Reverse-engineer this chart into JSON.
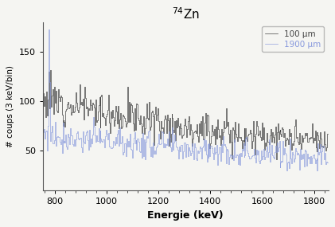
{
  "title": "$^{74}$Zn",
  "xlabel": "Energie (keV)",
  "ylabel": "# coups (3 keV/bin)",
  "xlim": [
    755,
    1855
  ],
  "ylim": [
    10,
    180
  ],
  "yticks": [
    50,
    100,
    150
  ],
  "xticks": [
    800,
    1000,
    1200,
    1400,
    1600,
    1800
  ],
  "color_black": "#444444",
  "color_blue": "#8899dd",
  "legend_labels": [
    "100 µm",
    "1900 µm"
  ],
  "seed_black": 12,
  "seed_blue": 77,
  "x_start": 757,
  "x_end": 1855,
  "bin_size": 3,
  "background_color": "#f5f5f2",
  "title_fontsize": 11,
  "label_fontsize": 9,
  "tick_fontsize": 8
}
